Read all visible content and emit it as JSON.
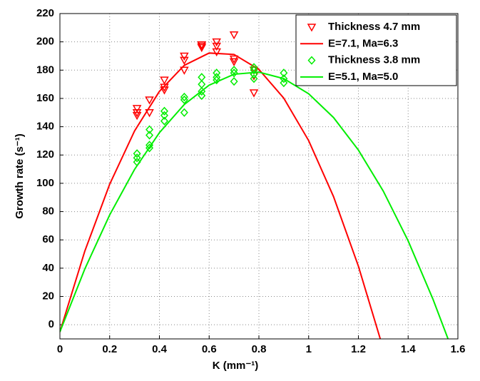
{
  "chart_data": {
    "type": "scatter",
    "xlabel": "K (mm⁻¹)",
    "ylabel": "Growth rate (s⁻¹)",
    "xlim": [
      0,
      1.6
    ],
    "xticks": [
      0,
      0.2,
      0.4,
      0.6,
      0.8,
      1,
      1.2,
      1.4,
      1.6
    ],
    "ylim": [
      -10,
      220
    ],
    "yticks": [
      0,
      20,
      40,
      60,
      80,
      100,
      120,
      140,
      160,
      180,
      200,
      220
    ],
    "grid": true,
    "legend": "upper right",
    "series": [
      {
        "name": "Thickness 4.7 mm",
        "mode": "markers",
        "marker": "triangle-down",
        "color": "#ff0000",
        "x": [
          0.31,
          0.31,
          0.31,
          0.36,
          0.36,
          0.42,
          0.42,
          0.42,
          0.5,
          0.5,
          0.5,
          0.57,
          0.57,
          0.57,
          0.63,
          0.63,
          0.63,
          0.7,
          0.7,
          0.7,
          0.78,
          0.78,
          0.78
        ],
        "values": [
          153,
          150,
          148,
          159,
          150,
          173,
          168,
          166,
          190,
          187,
          180,
          198,
          197,
          196,
          200,
          197,
          193,
          205,
          188,
          186,
          180,
          176,
          164
        ]
      },
      {
        "name": "E=7.1, Ma=6.3",
        "mode": "line",
        "color": "#ff0000",
        "x": [
          0,
          0.1,
          0.2,
          0.3,
          0.4,
          0.5,
          0.6,
          0.7,
          0.8,
          0.9,
          1.0,
          1.1,
          1.2,
          1.29
        ],
        "values": [
          -5,
          52.0,
          99.3,
          137.0,
          165.0,
          183.4,
          192.1,
          191.1,
          180.5,
          160.2,
          130.2,
          90.6,
          41.4,
          -11.2
        ]
      },
      {
        "name": "Thickness 3.8 mm",
        "mode": "markers",
        "marker": "diamond",
        "color": "#00ee00",
        "x": [
          0.31,
          0.31,
          0.31,
          0.36,
          0.36,
          0.36,
          0.36,
          0.42,
          0.42,
          0.42,
          0.5,
          0.5,
          0.5,
          0.57,
          0.57,
          0.57,
          0.57,
          0.63,
          0.63,
          0.63,
          0.7,
          0.7,
          0.7,
          0.78,
          0.78,
          0.78,
          0.78,
          0.9,
          0.9,
          0.9
        ],
        "values": [
          121,
          118,
          115,
          138,
          134,
          127,
          125,
          151,
          148,
          144,
          161,
          159,
          150,
          175,
          170,
          165,
          162,
          178,
          175,
          173,
          180,
          178,
          172,
          182,
          180,
          177,
          174,
          178,
          174,
          171
        ]
      },
      {
        "name": "E=5.1, Ma=5.0",
        "mode": "line",
        "color": "#00ee00",
        "x": [
          0,
          0.1,
          0.2,
          0.3,
          0.4,
          0.5,
          0.6,
          0.7,
          0.8,
          0.9,
          1.0,
          1.1,
          1.2,
          1.3,
          1.4,
          1.5,
          1.56
        ],
        "values": [
          -5,
          39.4,
          77.6,
          109.8,
          135.8,
          155.7,
          169.4,
          177.1,
          178.6,
          174.0,
          163.3,
          146.5,
          123.5,
          94.5,
          59.3,
          18.0,
          -9.8
        ]
      }
    ]
  }
}
